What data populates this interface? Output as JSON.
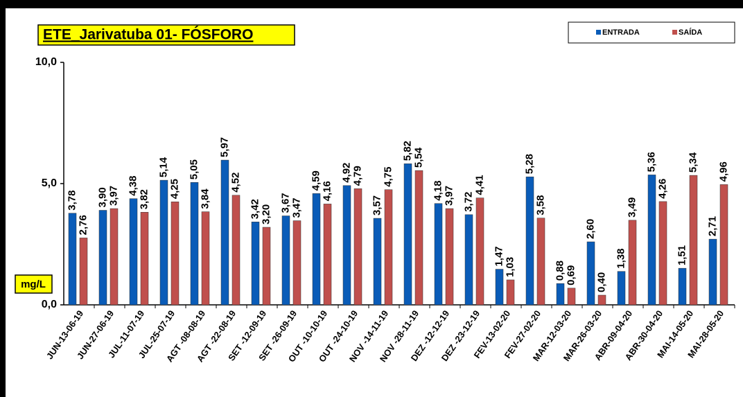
{
  "chart_data": {
    "type": "bar",
    "title": "ETE_Jarivatuba 01- FÓSFORO",
    "y_label": "mg/L",
    "categories": [
      "JUN-13-06-19",
      "JUN-27-06-19",
      "JUL-11-07-19",
      "JUL-25-07-19",
      "AGT -08-08-19",
      "AGT -22-08-19",
      "SET -12-09-19",
      "SET -26-09-19",
      "OUT -10-10-19",
      "OUT -24-10-19",
      "NOV -14-11-19",
      "NOV -28-11-19",
      "DEZ -12-12-19",
      "DEZ -23-12-19",
      "FEV-13-02-20",
      "FEV-27-02-20",
      "MAR-12-03-20",
      "MAR-26-03-20",
      "ABR-09-04-20",
      "ABR-30-04-20",
      "MAI-14-05-20",
      "MAI-28-05-20"
    ],
    "series": [
      {
        "name": "ENTRADA",
        "color": "#0a5cb8",
        "values": [
          3.78,
          3.9,
          4.38,
          5.14,
          5.05,
          5.97,
          3.42,
          3.67,
          4.59,
          4.92,
          3.57,
          5.82,
          4.18,
          3.72,
          1.47,
          5.28,
          0.88,
          2.6,
          1.38,
          5.36,
          1.51,
          2.71
        ],
        "value_labels": [
          "3,78",
          "3,90",
          "4,38",
          "5,14",
          "5,05",
          "5,97",
          "3,42",
          "3,67",
          "4,59",
          "4,92",
          "3,57",
          "5,82",
          "4,18",
          "3,72",
          "1,47",
          "5,28",
          "0,88",
          "2,60",
          "1,38",
          "5,36",
          "1,51",
          "2,71"
        ]
      },
      {
        "name": "SAÍDA",
        "color": "#c0504d",
        "values": [
          2.76,
          3.97,
          3.82,
          4.25,
          3.84,
          4.52,
          3.2,
          3.47,
          4.16,
          4.79,
          4.75,
          5.54,
          3.97,
          4.41,
          1.03,
          3.58,
          0.69,
          0.4,
          3.49,
          4.26,
          5.34,
          4.96
        ],
        "value_labels": [
          "2,76",
          "3,97",
          "3,82",
          "4,25",
          "3,84",
          "4,52",
          "3,20",
          "3,47",
          "4,16",
          "4,79",
          "4,75",
          "5,54",
          "3,97",
          "4,41",
          "1,03",
          "3,58",
          "0,69",
          "0,40",
          "3,49",
          "4,26",
          "5,34",
          "4,96"
        ]
      }
    ],
    "ylim": [
      0,
      10
    ],
    "yticks": [
      {
        "value": 0,
        "label": "0,0"
      },
      {
        "value": 5,
        "label": "5,0"
      },
      {
        "value": 10,
        "label": "10,0"
      }
    ],
    "grid": false,
    "legend": "top-right"
  }
}
